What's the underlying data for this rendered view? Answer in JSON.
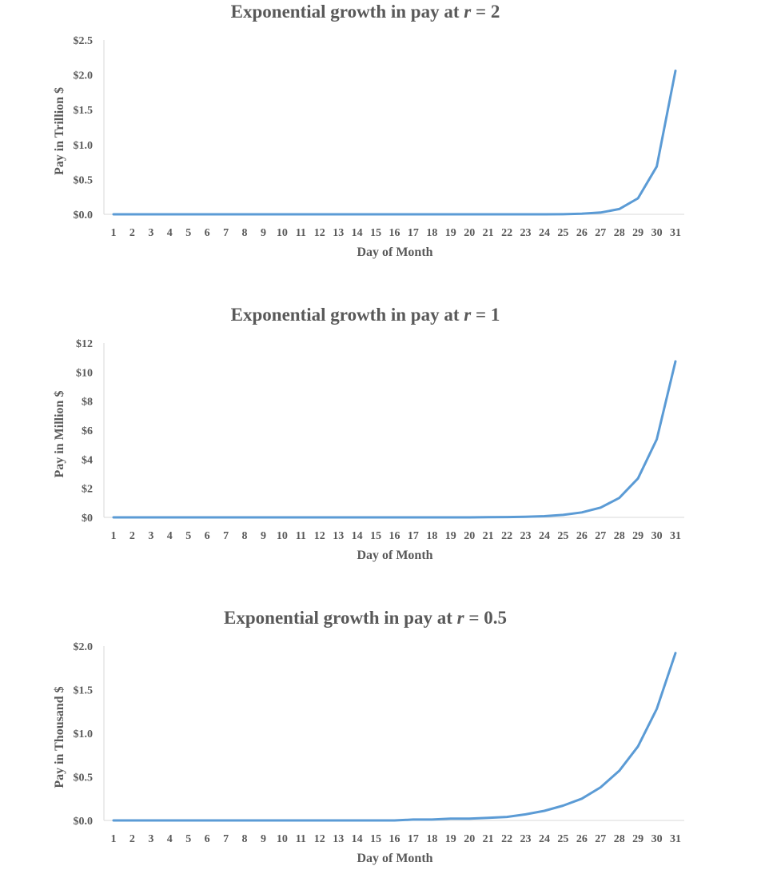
{
  "chart_data": [
    {
      "type": "line",
      "title_prefix": "Exponential growth in pay at ",
      "title_var": "r",
      "title_suffix": " = 2",
      "xlabel": "Day of Month",
      "ylabel": "Pay in Trillion $",
      "x": [
        1,
        2,
        3,
        4,
        5,
        6,
        7,
        8,
        9,
        10,
        11,
        12,
        13,
        14,
        15,
        16,
        17,
        18,
        19,
        20,
        21,
        22,
        23,
        24,
        25,
        26,
        27,
        28,
        29,
        30,
        31
      ],
      "values": [
        0,
        0,
        0,
        0,
        0,
        0,
        0,
        0,
        0,
        0,
        0,
        0,
        0,
        0,
        0,
        0,
        0,
        0,
        0,
        0,
        0,
        0,
        0,
        0.0001,
        0.001,
        0.008,
        0.025,
        0.076,
        0.229,
        0.686,
        2.059
      ],
      "ylim": [
        0,
        2.5
      ],
      "yticks": [
        0,
        0.5,
        1.0,
        1.5,
        2.0,
        2.5
      ],
      "ytick_labels": [
        "$0.0",
        "$0.5",
        "$1.0",
        "$1.5",
        "$2.0",
        "$2.5"
      ],
      "series_color": "#5b9bd5"
    },
    {
      "type": "line",
      "title_prefix": "Exponential growth in pay at ",
      "title_var": "r",
      "title_suffix": " = 1",
      "xlabel": "Day of Month",
      "ylabel": "Pay in Million $",
      "x": [
        1,
        2,
        3,
        4,
        5,
        6,
        7,
        8,
        9,
        10,
        11,
        12,
        13,
        14,
        15,
        16,
        17,
        18,
        19,
        20,
        21,
        22,
        23,
        24,
        25,
        26,
        27,
        28,
        29,
        30,
        31
      ],
      "values": [
        0,
        0,
        0,
        0,
        0,
        0,
        0,
        0,
        0,
        0,
        0,
        0,
        0,
        0,
        0,
        0,
        0,
        0,
        0,
        0.001,
        0.01,
        0.02,
        0.04,
        0.08,
        0.17,
        0.34,
        0.67,
        1.34,
        2.68,
        5.37,
        10.74
      ],
      "ylim": [
        0,
        12
      ],
      "yticks": [
        0,
        2,
        4,
        6,
        8,
        10,
        12
      ],
      "ytick_labels": [
        "$0",
        "$2",
        "$4",
        "$6",
        "$8",
        "$10",
        "$12"
      ],
      "series_color": "#5b9bd5"
    },
    {
      "type": "line",
      "title_prefix": "Exponential growth in pay at ",
      "title_var": "r",
      "title_suffix": " = 0.5",
      "xlabel": "Day of Month",
      "ylabel": "Pay in Thousand $",
      "x": [
        1,
        2,
        3,
        4,
        5,
        6,
        7,
        8,
        9,
        10,
        11,
        12,
        13,
        14,
        15,
        16,
        17,
        18,
        19,
        20,
        21,
        22,
        23,
        24,
        25,
        26,
        27,
        28,
        29,
        30,
        31
      ],
      "values": [
        0,
        0,
        0,
        0,
        0,
        0,
        0,
        0,
        0,
        0,
        0,
        0,
        0,
        0,
        0,
        0,
        0.01,
        0.01,
        0.02,
        0.02,
        0.03,
        0.04,
        0.07,
        0.11,
        0.17,
        0.25,
        0.38,
        0.57,
        0.85,
        1.28,
        1.92
      ],
      "ylim": [
        0,
        2.0
      ],
      "yticks": [
        0,
        0.5,
        1.0,
        1.5,
        2.0
      ],
      "ytick_labels": [
        "$0.0",
        "$0.5",
        "$1.0",
        "$1.5",
        "$2.0"
      ],
      "series_color": "#5b9bd5"
    }
  ]
}
